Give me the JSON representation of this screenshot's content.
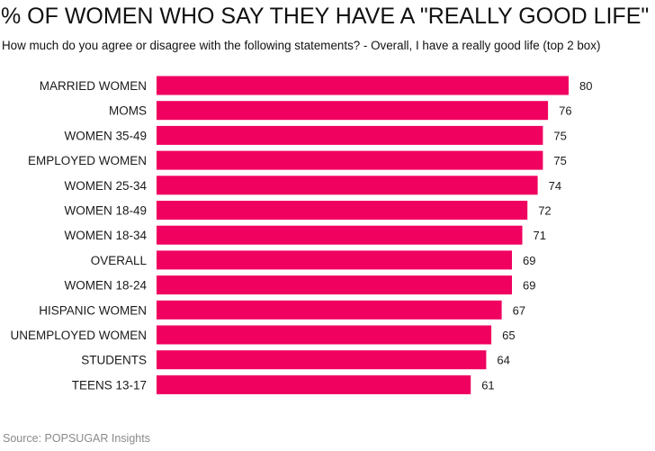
{
  "chart_data": {
    "type": "bar",
    "orientation": "horizontal",
    "title": "% OF WOMEN WHO SAY THEY HAVE A \"REALLY GOOD LIFE\"",
    "subtitle": "How much do you agree or disagree with the following statements? - Overall, I have a really good life (top 2 box)",
    "source": "Source: POPSUGAR Insights",
    "categories": [
      "MARRIED WOMEN",
      "MOMS",
      "WOMEN 35-49",
      "EMPLOYED WOMEN",
      "WOMEN 25-34",
      "WOMEN 18-49",
      "WOMEN 18-34",
      "OVERALL",
      "WOMEN 18-24",
      "HISPANIC WOMEN",
      "UNEMPLOYED WOMEN",
      "STUDENTS",
      "TEENS 13-17"
    ],
    "values": [
      80,
      76,
      75,
      75,
      74,
      72,
      71,
      69,
      69,
      67,
      65,
      64,
      61
    ],
    "bar_color": "#f0005f",
    "xlim": [
      0,
      80
    ],
    "grid": false,
    "legend": "none"
  }
}
